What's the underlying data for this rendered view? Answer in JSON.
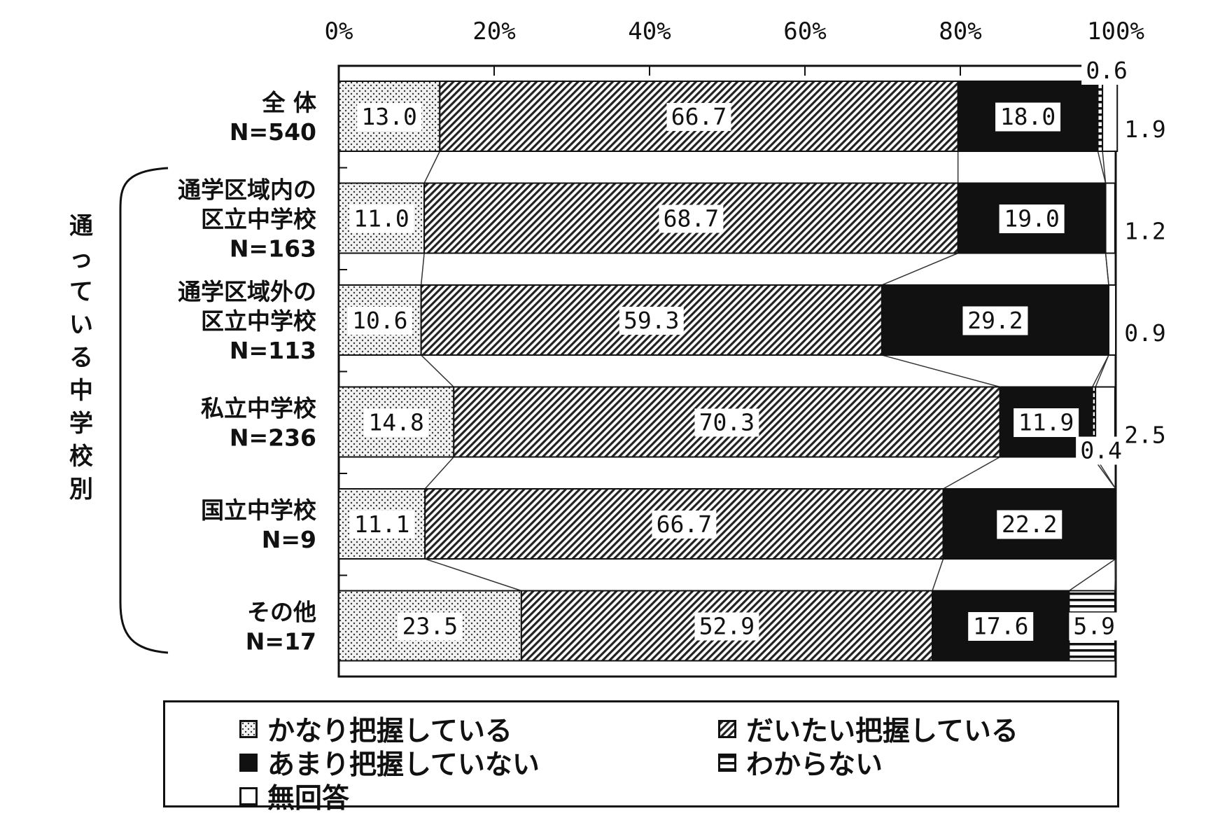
{
  "chart_data": {
    "type": "bar",
    "stacked": true,
    "orientation": "horizontal",
    "percent": true,
    "x_ticks": [
      "0%",
      "20%",
      "40%",
      "60%",
      "80%",
      "100%"
    ],
    "xlim": [
      0,
      100
    ],
    "categories": [
      [
        "全 体",
        "N=540"
      ],
      [
        "通学区域内の",
        "区立中学校",
        "N=163"
      ],
      [
        "通学区域外の",
        "区立中学校",
        "N=113"
      ],
      [
        "私立中学校",
        "N=236"
      ],
      [
        "国立中学校",
        "N=9"
      ],
      [
        "その他",
        "N=17"
      ]
    ],
    "group_label": "通っている中学校別",
    "series": [
      {
        "name": "かなり把握している",
        "values": [
          13.0,
          11.0,
          10.6,
          14.8,
          11.1,
          23.5
        ],
        "labels": [
          "13.0",
          "11.0",
          "10.6",
          "14.8",
          "11.1",
          "23.5"
        ],
        "pattern": "dots"
      },
      {
        "name": "だいたい把握している",
        "values": [
          66.7,
          68.7,
          59.3,
          70.3,
          66.7,
          52.9
        ],
        "labels": [
          "66.7",
          "68.7",
          "59.3",
          "70.3",
          "66.7",
          "52.9"
        ],
        "pattern": "diagonal"
      },
      {
        "name": "あまり把握していない",
        "values": [
          18.0,
          19.0,
          29.2,
          11.9,
          22.2,
          17.6
        ],
        "labels": [
          "18.0",
          "19.0",
          "29.2",
          "11.9",
          "22.2",
          "17.6"
        ],
        "pattern": "solid"
      },
      {
        "name": "わからない",
        "values": [
          0.6,
          0,
          0,
          0.4,
          0,
          5.9
        ],
        "labels": [
          "0.6",
          "",
          "",
          "0.4",
          "",
          "5.9"
        ],
        "pattern": "horizontal"
      },
      {
        "name": "無回答",
        "values": [
          1.9,
          1.2,
          0.9,
          2.5,
          0,
          0
        ],
        "labels": [
          "1.9",
          "1.2",
          "0.9",
          "2.5",
          "",
          ""
        ],
        "pattern": "blank"
      }
    ],
    "legend": {
      "placement": "bottom",
      "columns": 2
    },
    "colors": {
      "ink": "#111111",
      "dots_bg": "#f2f2f2",
      "solid": "#111111"
    }
  }
}
